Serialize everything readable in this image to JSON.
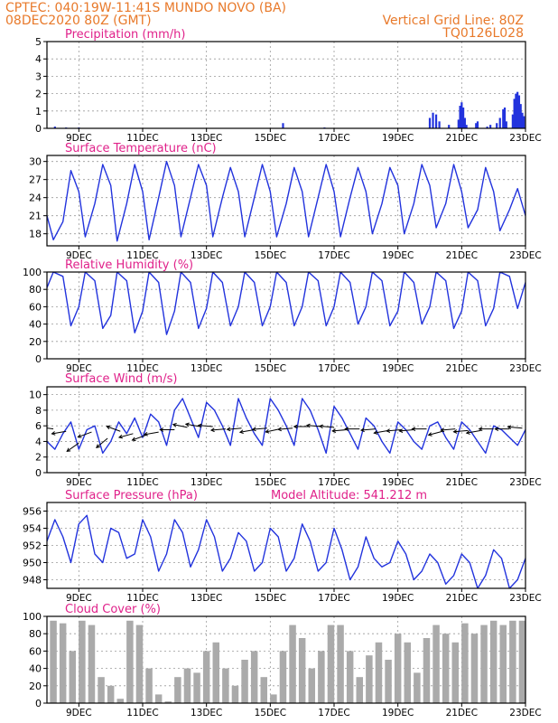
{
  "header": {
    "line1_left": "CPTEC:   040:19W-11:41S   MUNDO NOVO (BA)",
    "line2_left": "08DEC2020 80Z (GMT)",
    "line1_right": "Vertical Grid Line: 80Z",
    "line2_right": "TQ0126L028"
  },
  "x_axis": {
    "range_days": [
      8.0,
      23.0
    ],
    "ticks": [
      9,
      11,
      13,
      15,
      17,
      19,
      21,
      23
    ],
    "tick_labels": [
      "9DEC",
      "11DEC",
      "13DEC",
      "15DEC",
      "17DEC",
      "19DEC",
      "21DEC",
      "23DEC"
    ]
  },
  "panels": {
    "precipitation": {
      "title": "Precipitation  (mm/h)"
    },
    "temperature": {
      "title": "Surface Temperature  (nC)"
    },
    "humidity": {
      "title": "Relative Humidity  (%)"
    },
    "wind": {
      "title": "Surface Wind  (m/s)"
    },
    "pressure": {
      "title": "Surface Pressure  (hPa)",
      "note": "Model Altitude: 541.212  m"
    },
    "cloud": {
      "title": "Cloud Cover  (%)"
    }
  },
  "colors": {
    "line": "#2233dd",
    "bar": "#2233dd",
    "cloud": "#aaaaaa",
    "header": "#e8792a",
    "title": "#e0218a"
  },
  "chart_data": [
    {
      "type": "bar",
      "key": "precipitation",
      "title": "Precipitation  (mm/h)",
      "ylim": [
        0,
        5
      ],
      "yticks": [
        0,
        1,
        2,
        3,
        4,
        5
      ],
      "x": [
        8.25,
        8.6,
        9.0,
        15.4,
        16.7,
        20.0,
        20.1,
        20.2,
        20.3,
        20.6,
        20.9,
        20.95,
        21.0,
        21.05,
        21.1,
        21.15,
        21.45,
        21.5,
        21.8,
        21.9,
        22.1,
        22.2,
        22.3,
        22.35,
        22.4,
        22.6,
        22.65,
        22.7,
        22.75,
        22.8,
        22.85,
        22.9,
        22.95
      ],
      "values": [
        0.1,
        0.05,
        0.05,
        0.3,
        0.05,
        0.6,
        0.9,
        0.8,
        0.4,
        0.2,
        0.5,
        1.3,
        1.5,
        1.2,
        0.6,
        0.2,
        0.3,
        0.4,
        0.1,
        0.2,
        0.3,
        0.6,
        1.1,
        1.2,
        0.4,
        0.8,
        1.7,
        2.0,
        2.1,
        1.9,
        1.4,
        0.9,
        0.7
      ]
    },
    {
      "type": "line",
      "key": "temperature",
      "title": "Surface Temperature  (nC)",
      "ylim": [
        16,
        31
      ],
      "yticks": [
        18,
        21,
        24,
        27,
        30
      ],
      "x": [
        8.0,
        8.2,
        8.5,
        8.75,
        9.0,
        9.2,
        9.5,
        9.75,
        10.0,
        10.2,
        10.5,
        10.75,
        11.0,
        11.2,
        11.5,
        11.75,
        12.0,
        12.2,
        12.5,
        12.75,
        13.0,
        13.2,
        13.5,
        13.75,
        14.0,
        14.2,
        14.5,
        14.75,
        15.0,
        15.2,
        15.5,
        15.75,
        16.0,
        16.2,
        16.5,
        16.75,
        17.0,
        17.2,
        17.5,
        17.75,
        18.0,
        18.2,
        18.5,
        18.75,
        19.0,
        19.2,
        19.5,
        19.75,
        20.0,
        20.2,
        20.5,
        20.75,
        21.0,
        21.2,
        21.5,
        21.75,
        22.0,
        22.2,
        22.5,
        22.75,
        23.0
      ],
      "values": [
        21.0,
        17.0,
        20.0,
        28.5,
        25.0,
        17.5,
        23.0,
        29.5,
        26.0,
        16.8,
        23.0,
        29.5,
        25.0,
        17.0,
        24.0,
        30.0,
        26.0,
        17.5,
        24.0,
        29.5,
        26.0,
        17.5,
        24.0,
        29.0,
        25.0,
        17.5,
        24.0,
        29.5,
        25.0,
        17.5,
        23.0,
        29.0,
        25.0,
        17.5,
        24.0,
        29.5,
        25.0,
        17.5,
        24.0,
        29.0,
        25.0,
        18.0,
        23.0,
        29.0,
        26.0,
        18.0,
        23.0,
        29.5,
        26.0,
        19.0,
        23.0,
        29.5,
        25.0,
        19.0,
        22.0,
        29.0,
        25.0,
        18.5,
        22.0,
        25.5,
        21.0
      ]
    },
    {
      "type": "line",
      "key": "humidity",
      "title": "Relative Humidity  (%)",
      "ylim": [
        0,
        100
      ],
      "yticks": [
        0,
        20,
        40,
        60,
        80,
        100
      ],
      "x": [
        8.0,
        8.2,
        8.5,
        8.75,
        9.0,
        9.2,
        9.5,
        9.75,
        10.0,
        10.2,
        10.5,
        10.75,
        11.0,
        11.2,
        11.5,
        11.75,
        12.0,
        12.2,
        12.5,
        12.75,
        13.0,
        13.2,
        13.5,
        13.75,
        14.0,
        14.2,
        14.5,
        14.75,
        15.0,
        15.2,
        15.5,
        15.75,
        16.0,
        16.2,
        16.5,
        16.75,
        17.0,
        17.2,
        17.5,
        17.75,
        18.0,
        18.2,
        18.5,
        18.75,
        19.0,
        19.2,
        19.5,
        19.75,
        20.0,
        20.2,
        20.5,
        20.75,
        21.0,
        21.2,
        21.5,
        21.75,
        22.0,
        22.2,
        22.5,
        22.75,
        23.0
      ],
      "values": [
        82,
        100,
        95,
        38,
        60,
        100,
        90,
        35,
        50,
        100,
        90,
        30,
        55,
        100,
        88,
        28,
        55,
        100,
        88,
        35,
        58,
        100,
        88,
        38,
        60,
        100,
        88,
        38,
        60,
        100,
        88,
        38,
        60,
        100,
        90,
        38,
        60,
        100,
        88,
        40,
        60,
        100,
        90,
        38,
        55,
        100,
        88,
        40,
        60,
        100,
        90,
        35,
        55,
        100,
        90,
        38,
        58,
        100,
        95,
        58,
        88
      ]
    },
    {
      "type": "line",
      "key": "wind",
      "title": "Surface Wind  (m/s)",
      "ylim": [
        0,
        11
      ],
      "yticks": [
        0,
        2,
        4,
        6,
        8,
        10
      ],
      "x": [
        8.0,
        8.25,
        8.5,
        8.75,
        9.0,
        9.25,
        9.5,
        9.75,
        10.0,
        10.25,
        10.5,
        10.75,
        11.0,
        11.25,
        11.5,
        11.75,
        12.0,
        12.25,
        12.5,
        12.75,
        13.0,
        13.25,
        13.5,
        13.75,
        14.0,
        14.25,
        14.5,
        14.75,
        15.0,
        15.25,
        15.5,
        15.75,
        16.0,
        16.25,
        16.5,
        16.75,
        17.0,
        17.25,
        17.5,
        17.75,
        18.0,
        18.25,
        18.5,
        18.75,
        19.0,
        19.25,
        19.5,
        19.75,
        20.0,
        20.25,
        20.5,
        20.75,
        21.0,
        21.25,
        21.5,
        21.75,
        22.0,
        22.25,
        22.5,
        22.75,
        23.0
      ],
      "values": [
        4.0,
        3.0,
        5.0,
        6.5,
        3.0,
        5.5,
        6.0,
        2.5,
        4.0,
        6.5,
        5.0,
        7.0,
        4.5,
        7.5,
        6.5,
        3.5,
        8.0,
        9.5,
        7.0,
        4.5,
        9.0,
        8.0,
        6.0,
        3.5,
        9.5,
        7.0,
        5.0,
        3.5,
        9.5,
        8.0,
        6.0,
        3.5,
        9.5,
        8.0,
        5.5,
        2.5,
        8.5,
        7.0,
        5.0,
        3.0,
        7.0,
        6.0,
        4.0,
        2.5,
        6.5,
        5.5,
        4.0,
        3.0,
        6.0,
        6.5,
        4.5,
        3.0,
        6.5,
        5.5,
        4.0,
        2.5,
        6.0,
        5.5,
        4.5,
        3.5,
        5.5
      ],
      "barbs_x": [
        8.2,
        8.6,
        9.0,
        9.4,
        9.9,
        10.3,
        10.7,
        11.1,
        11.5,
        12.0,
        12.4,
        12.8,
        13.2,
        13.6,
        14.1,
        14.5,
        14.9,
        15.3,
        15.7,
        16.2,
        16.6,
        17.0,
        17.4,
        17.8,
        18.3,
        18.7,
        19.1,
        19.5,
        19.9,
        20.4,
        20.8,
        21.2,
        21.6,
        22.0,
        22.5,
        22.9
      ],
      "barbs_y": [
        5.6,
        5.3,
        3.8,
        5.2,
        4.4,
        5.3,
        5.0,
        4.8,
        5.2,
        5.5,
        5.8,
        5.9,
        5.9,
        5.6,
        5.7,
        5.5,
        5.7,
        5.6,
        5.7,
        5.9,
        5.9,
        5.8,
        5.5,
        5.6,
        5.6,
        5.4,
        5.5,
        5.5,
        5.6,
        5.3,
        5.6,
        5.4,
        5.4,
        5.6,
        5.6,
        5.7
      ],
      "barbs_angle": [
        -8,
        10,
        35,
        20,
        40,
        -20,
        15,
        20,
        10,
        0,
        -12,
        -10,
        -5,
        5,
        5,
        10,
        5,
        12,
        5,
        0,
        -5,
        -5,
        5,
        0,
        5,
        10,
        5,
        5,
        0,
        15,
        5,
        5,
        10,
        0,
        0,
        -5
      ]
    },
    {
      "type": "line",
      "key": "pressure",
      "title": "Surface Pressure  (hPa)",
      "ylim": [
        947,
        957
      ],
      "yticks": [
        948,
        950,
        952,
        954,
        956
      ],
      "x": [
        8.0,
        8.25,
        8.5,
        8.75,
        9.0,
        9.25,
        9.5,
        9.75,
        10.0,
        10.25,
        10.5,
        10.75,
        11.0,
        11.25,
        11.5,
        11.75,
        12.0,
        12.25,
        12.5,
        12.75,
        13.0,
        13.25,
        13.5,
        13.75,
        14.0,
        14.25,
        14.5,
        14.75,
        15.0,
        15.25,
        15.5,
        15.75,
        16.0,
        16.25,
        16.5,
        16.75,
        17.0,
        17.25,
        17.5,
        17.75,
        18.0,
        18.25,
        18.5,
        18.75,
        19.0,
        19.25,
        19.5,
        19.75,
        20.0,
        20.25,
        20.5,
        20.75,
        21.0,
        21.25,
        21.5,
        21.75,
        22.0,
        22.25,
        22.5,
        22.75,
        23.0
      ],
      "values": [
        952.5,
        955.0,
        953.0,
        950.0,
        954.5,
        955.5,
        951.0,
        950.0,
        954.0,
        953.5,
        950.5,
        951.0,
        955.0,
        953.0,
        949.0,
        951.0,
        955.0,
        953.5,
        949.5,
        951.5,
        955.0,
        953.0,
        949.0,
        950.5,
        953.5,
        952.5,
        949.0,
        950.0,
        954.0,
        953.0,
        949.0,
        950.5,
        954.5,
        952.5,
        949.0,
        950.0,
        954.0,
        951.5,
        948.0,
        949.5,
        953.0,
        950.5,
        949.5,
        950.0,
        952.5,
        951.0,
        948.0,
        949.0,
        951.0,
        950.0,
        947.5,
        948.5,
        951.0,
        950.0,
        947.0,
        948.5,
        951.5,
        950.5,
        947.0,
        948.0,
        950.5
      ]
    },
    {
      "type": "bar",
      "key": "cloud",
      "title": "Cloud Cover  (%)",
      "ylim": [
        0,
        100
      ],
      "yticks": [
        0,
        20,
        40,
        60,
        80,
        100
      ],
      "x": [
        8.2,
        8.5,
        8.8,
        9.1,
        9.4,
        9.7,
        10.0,
        10.3,
        10.6,
        10.9,
        11.2,
        11.5,
        11.8,
        12.1,
        12.4,
        12.7,
        13.0,
        13.3,
        13.6,
        13.9,
        14.2,
        14.5,
        14.8,
        15.1,
        15.4,
        15.7,
        16.0,
        16.3,
        16.6,
        16.9,
        17.2,
        17.5,
        17.8,
        18.1,
        18.4,
        18.7,
        19.0,
        19.3,
        19.6,
        19.9,
        20.2,
        20.5,
        20.8,
        21.1,
        21.4,
        21.7,
        22.0,
        22.3,
        22.6,
        22.9
      ],
      "values": [
        95,
        92,
        60,
        95,
        90,
        30,
        20,
        5,
        95,
        90,
        40,
        10,
        2,
        30,
        40,
        35,
        60,
        70,
        40,
        20,
        50,
        60,
        30,
        10,
        60,
        90,
        75,
        40,
        60,
        90,
        90,
        60,
        30,
        55,
        70,
        50,
        80,
        70,
        35,
        75,
        90,
        80,
        70,
        92,
        80,
        90,
        95,
        90,
        95,
        95
      ]
    }
  ]
}
